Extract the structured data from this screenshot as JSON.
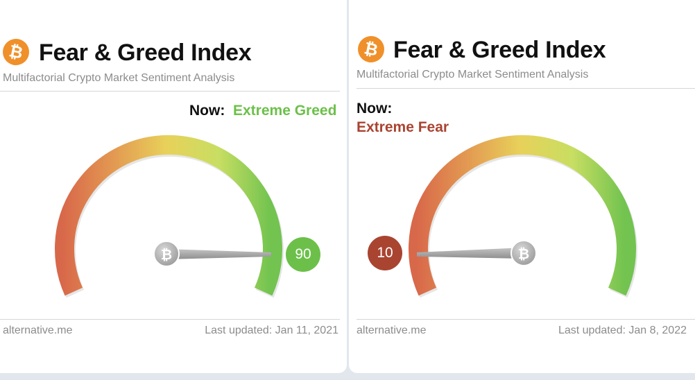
{
  "colors": {
    "greed": "#6cc04a",
    "fear": "#a94431",
    "logo": "#f0902a"
  },
  "panels": [
    {
      "logo_icon": "bitcoin-icon",
      "title": "Fear & Greed Index",
      "subtitle": "Multifactorial Crypto Market Sentiment Analysis",
      "now_label": "Now:",
      "status": "Extreme Greed",
      "value": "90",
      "footer_source": "alternative.me",
      "last_updated": "Last updated: Jan 11, 2021"
    },
    {
      "logo_icon": "bitcoin-icon",
      "title": "Fear & Greed Index",
      "subtitle": "Multifactorial Crypto Market Sentiment Analysis",
      "now_label": "Now:",
      "status": "Extreme Fear",
      "value": "10",
      "footer_source": "alternative.me",
      "last_updated": "Last updated: Jan 8, 2022"
    }
  ]
}
